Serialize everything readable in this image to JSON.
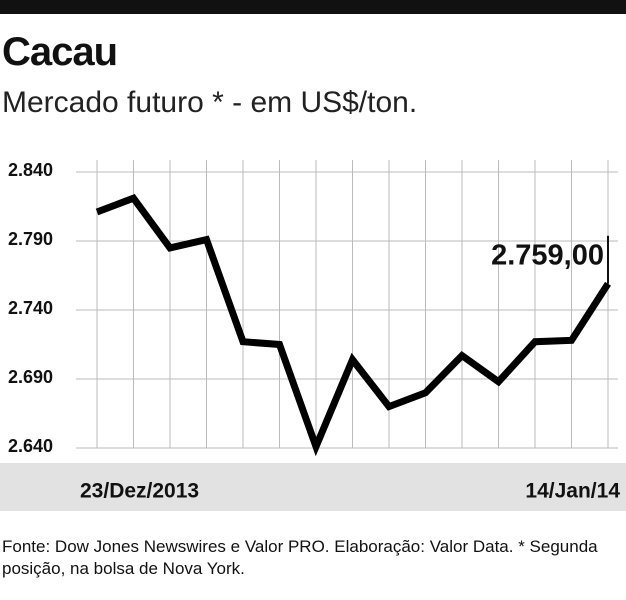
{
  "chart_data": {
    "type": "line",
    "title": "Cacau",
    "subtitle": "Mercado futuro * - em US$/ton.",
    "categories": [
      "23/Dez/2013",
      null,
      null,
      null,
      null,
      null,
      null,
      null,
      null,
      null,
      null,
      null,
      null,
      null,
      "14/Jan/14"
    ],
    "series": [
      {
        "color": "#000000",
        "values": [
          2811,
          2821,
          2785,
          2791,
          2717,
          2715,
          2641,
          2704,
          2670,
          2680,
          2707,
          2688,
          2717,
          2718,
          2759
        ],
        "value_labels": [
          null,
          null,
          null,
          null,
          null,
          null,
          null,
          null,
          null,
          null,
          null,
          null,
          null,
          null,
          "2.759,00"
        ]
      }
    ],
    "ylim": [
      2640,
      2840
    ],
    "yticks": [
      {
        "value": 2640,
        "label": "2.640"
      },
      {
        "value": 2690,
        "label": "2.690"
      },
      {
        "value": 2740,
        "label": "2.740"
      },
      {
        "value": 2790,
        "label": "2.790"
      },
      {
        "value": 2840,
        "label": "2.840"
      }
    ],
    "grid": true,
    "source": "Fonte: Dow Jones Newswires e Valor PRO. Elaboração: Valor Data. * Segunda posição, na bolsa de Nova York."
  }
}
